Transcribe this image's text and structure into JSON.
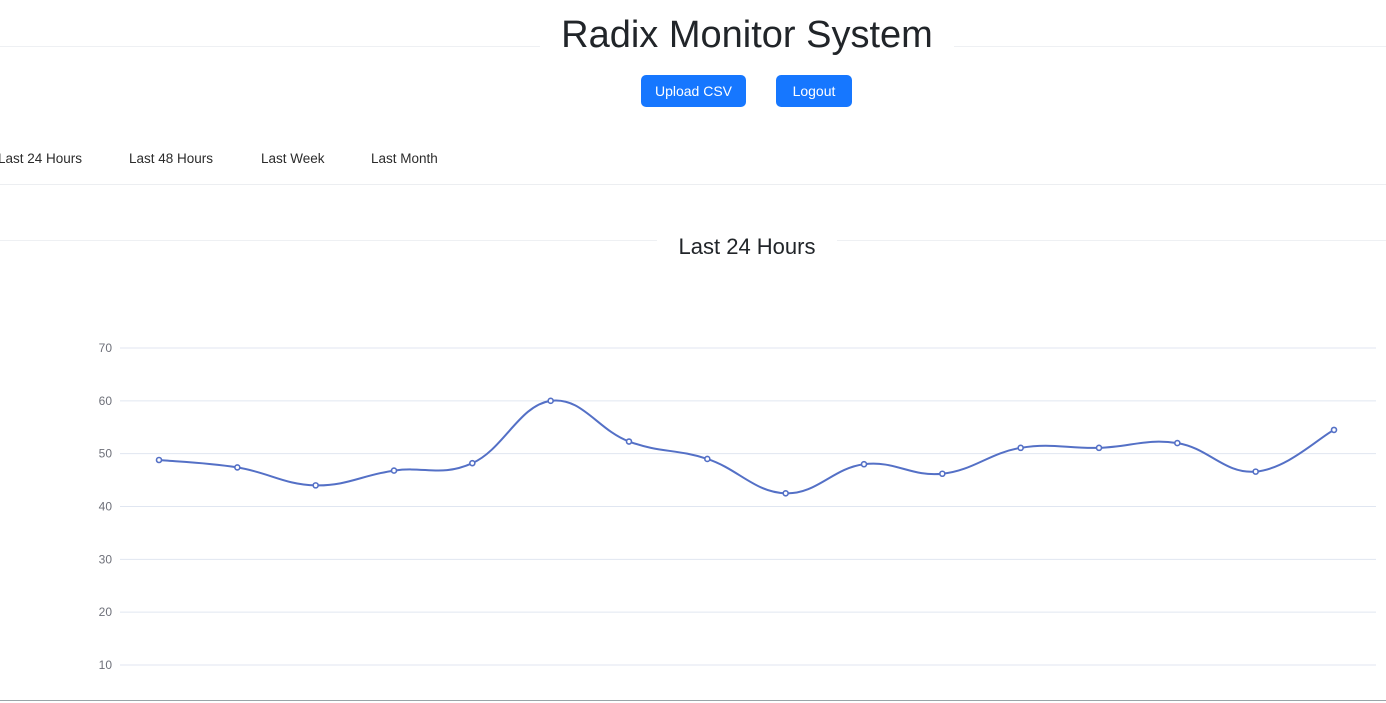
{
  "header": {
    "title": "Radix Monitor System",
    "upload_label": "Upload CSV",
    "logout_label": "Logout"
  },
  "tabs": [
    {
      "label": "Last 24 Hours"
    },
    {
      "label": "Last 48 Hours"
    },
    {
      "label": "Last Week"
    },
    {
      "label": "Last Month"
    }
  ],
  "section": {
    "title": "Last 24 Hours"
  },
  "colors": {
    "accent": "#1677ff",
    "series": "#5470c6",
    "grid": "#e0e6f1"
  },
  "chart_data": {
    "type": "line",
    "smooth": true,
    "yticks": [
      10,
      20,
      30,
      40,
      50,
      60,
      70
    ],
    "ylim": [
      10,
      70
    ],
    "grid": true,
    "series": [
      {
        "values": [
          48.8,
          47.4,
          44.0,
          46.8,
          48.2,
          60.0,
          52.3,
          49.0,
          42.5,
          48.0,
          46.2,
          51.1,
          51.1,
          52.0,
          46.6,
          54.5
        ]
      }
    ]
  }
}
